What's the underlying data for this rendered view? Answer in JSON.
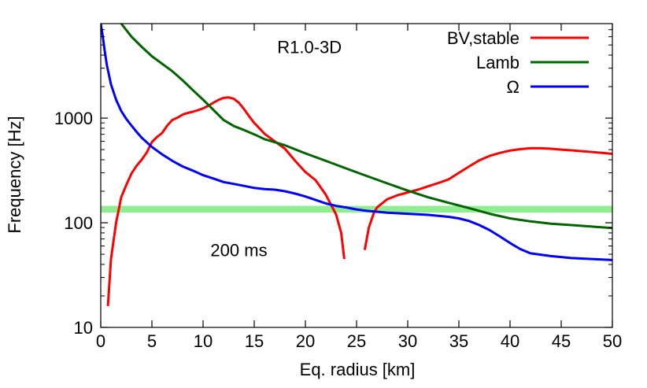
{
  "chart_data": {
    "type": "line",
    "title": "",
    "xlabel": "Eq. radius [km]",
    "ylabel": "Frequency [Hz]",
    "xlim": [
      0,
      50
    ],
    "ylim": [
      10,
      8000
    ],
    "yscale": "log",
    "grid": false,
    "legend_position": "top-right",
    "xticks": [
      0,
      5,
      10,
      15,
      20,
      25,
      30,
      35,
      40,
      45,
      50
    ],
    "yticks": [
      10,
      100,
      1000
    ],
    "annotations": [
      {
        "text": "R1.0-3D",
        "x": 20.4,
        "y": 4800
      },
      {
        "text": "200 ms",
        "x": 13.5,
        "y": 55
      }
    ],
    "band": {
      "y_low": 125,
      "y_high": 145,
      "color": "#90ee90"
    },
    "series": [
      {
        "name": "BV,stable",
        "color": "#ff0000",
        "segments": [
          [
            [
              0.7,
              16
            ],
            [
              1.0,
              45
            ],
            [
              1.5,
              100
            ],
            [
              2.0,
              175
            ],
            [
              2.5,
              230
            ],
            [
              3.0,
              295
            ],
            [
              3.5,
              350
            ],
            [
              4.0,
              400
            ],
            [
              4.5,
              470
            ],
            [
              5.0,
              590
            ],
            [
              5.5,
              660
            ],
            [
              6.0,
              720
            ],
            [
              6.5,
              850
            ],
            [
              7.0,
              960
            ],
            [
              7.5,
              1010
            ],
            [
              8.0,
              1080
            ],
            [
              8.5,
              1120
            ],
            [
              9.0,
              1150
            ],
            [
              9.5,
              1190
            ],
            [
              10.0,
              1240
            ],
            [
              10.5,
              1310
            ],
            [
              11.0,
              1400
            ],
            [
              11.5,
              1490
            ],
            [
              12.0,
              1560
            ],
            [
              12.5,
              1575
            ],
            [
              13.0,
              1530
            ],
            [
              13.5,
              1400
            ],
            [
              14.0,
              1220
            ],
            [
              14.5,
              1040
            ],
            [
              15.0,
              900
            ],
            [
              16.0,
              710
            ],
            [
              17.0,
              600
            ],
            [
              18.0,
              510
            ],
            [
              19.0,
              390
            ],
            [
              20.0,
              305
            ],
            [
              21.0,
              255
            ],
            [
              22.0,
              185
            ],
            [
              23.0,
              120
            ],
            [
              23.5,
              80
            ],
            [
              23.8,
              45
            ]
          ],
          [
            [
              25.8,
              55
            ],
            [
              26.2,
              90
            ],
            [
              26.7,
              125
            ],
            [
              27.0,
              140
            ],
            [
              28.0,
              168
            ],
            [
              29.0,
              183
            ],
            [
              30.0,
              195
            ],
            [
              31.0,
              207
            ],
            [
              32.0,
              223
            ],
            [
              33.0,
              240
            ],
            [
              34.0,
              260
            ],
            [
              35.0,
              300
            ],
            [
              36.0,
              345
            ],
            [
              37.0,
              395
            ],
            [
              38.0,
              435
            ],
            [
              39.0,
              465
            ],
            [
              40.0,
              490
            ],
            [
              41.0,
              505
            ],
            [
              42.0,
              515
            ],
            [
              43.0,
              515
            ],
            [
              44.0,
              510
            ],
            [
              45.0,
              500
            ],
            [
              46.0,
              492
            ],
            [
              47.0,
              483
            ],
            [
              48.0,
              475
            ],
            [
              49.0,
              465
            ],
            [
              50.0,
              455
            ]
          ]
        ]
      },
      {
        "name": "Lamb",
        "color": "#006400",
        "segments": [
          [
            [
              2.0,
              8000
            ],
            [
              3.0,
              6000
            ],
            [
              4.0,
              4800
            ],
            [
              5.0,
              3900
            ],
            [
              6.0,
              3300
            ],
            [
              7.0,
              2800
            ],
            [
              8.0,
              2300
            ],
            [
              9.0,
              1850
            ],
            [
              10.0,
              1500
            ],
            [
              11.0,
              1200
            ],
            [
              12.0,
              960
            ],
            [
              13.0,
              840
            ],
            [
              14.0,
              770
            ],
            [
              15.0,
              700
            ],
            [
              16.0,
              630
            ],
            [
              18.0,
              550
            ],
            [
              20.0,
              460
            ],
            [
              22.0,
              390
            ],
            [
              24.0,
              330
            ],
            [
              26.0,
              280
            ],
            [
              28.0,
              238
            ],
            [
              30.0,
              203
            ],
            [
              32.0,
              175
            ],
            [
              34.0,
              155
            ],
            [
              36.0,
              138
            ],
            [
              38.0,
              122
            ],
            [
              40.0,
              110
            ],
            [
              42.0,
              103
            ],
            [
              44.0,
              98
            ],
            [
              46.0,
              95
            ],
            [
              48.0,
              92
            ],
            [
              50.0,
              89
            ]
          ]
        ]
      },
      {
        "name": "Ω",
        "color": "#0000ff",
        "segments": [
          [
            [
              0.0,
              8000
            ],
            [
              0.2,
              6000
            ],
            [
              0.4,
              4300
            ],
            [
              0.6,
              3200
            ],
            [
              0.8,
              2600
            ],
            [
              1.0,
              2100
            ],
            [
              1.5,
              1500
            ],
            [
              2.0,
              1170
            ],
            [
              2.5,
              980
            ],
            [
              3.0,
              850
            ],
            [
              3.5,
              740
            ],
            [
              4.0,
              650
            ],
            [
              5.0,
              530
            ],
            [
              6.0,
              450
            ],
            [
              7.0,
              390
            ],
            [
              8.0,
              345
            ],
            [
              9.0,
              315
            ],
            [
              10.0,
              285
            ],
            [
              11.0,
              265
            ],
            [
              12.0,
              245
            ],
            [
              13.0,
              235
            ],
            [
              14.0,
              225
            ],
            [
              15.0,
              215
            ],
            [
              16.0,
              210
            ],
            [
              17.0,
              207
            ],
            [
              18.0,
              200
            ],
            [
              19.0,
              190
            ],
            [
              20.0,
              178
            ],
            [
              21.0,
              165
            ],
            [
              22.0,
              153
            ],
            [
              23.0,
              145
            ],
            [
              24.0,
              140
            ],
            [
              25.0,
              134
            ],
            [
              26.0,
              130
            ],
            [
              28.0,
              125
            ],
            [
              30.0,
              122
            ],
            [
              32.0,
              119
            ],
            [
              34.0,
              114
            ],
            [
              35.0,
              110
            ],
            [
              36.0,
              104
            ],
            [
              37.0,
              95
            ],
            [
              38.0,
              85
            ],
            [
              39.0,
              74
            ],
            [
              40.0,
              64
            ],
            [
              41.0,
              56
            ],
            [
              42.0,
              51
            ],
            [
              44.0,
              48
            ],
            [
              46.0,
              46
            ],
            [
              48.0,
              45
            ],
            [
              50.0,
              44
            ]
          ]
        ]
      }
    ]
  }
}
